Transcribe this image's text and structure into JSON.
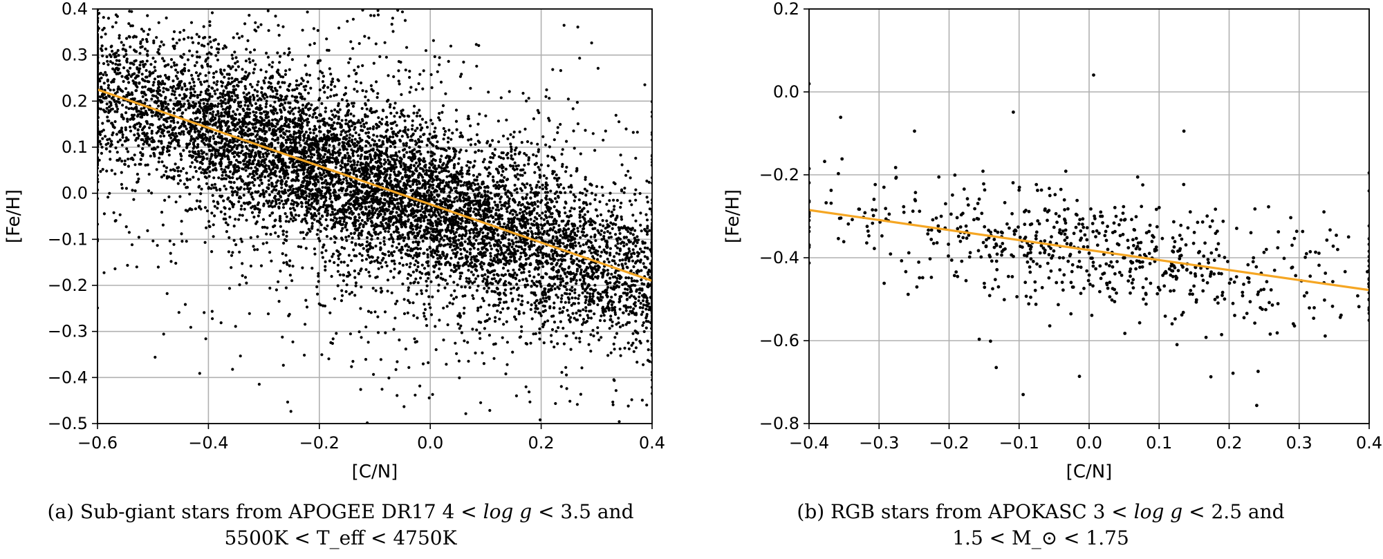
{
  "chart_data": [
    {
      "id": "a",
      "type": "scatter",
      "xlabel": "[C/N]",
      "ylabel": "[Fe/H]",
      "xlim": [
        -0.6,
        0.4
      ],
      "ylim": [
        -0.5,
        0.4
      ],
      "xticks": [
        -0.6,
        -0.4,
        -0.2,
        0.0,
        0.2,
        0.4
      ],
      "yticks": [
        -0.5,
        -0.4,
        -0.3,
        -0.2,
        -0.1,
        0.0,
        0.1,
        0.2,
        0.3,
        0.4
      ],
      "xtick_labels": [
        "−0.6",
        "−0.4",
        "−0.2",
        "0.0",
        "0.2",
        "0.4"
      ],
      "ytick_labels": [
        "−0.5",
        "−0.4",
        "−0.3",
        "−0.2",
        "−0.1",
        "0.0",
        "0.1",
        "0.2",
        "0.3",
        "0.4"
      ],
      "grid": true,
      "fit_line": {
        "x": [
          -0.6,
          0.4
        ],
        "y": [
          0.225,
          -0.19
        ],
        "color": "#f5a623"
      },
      "scatter": {
        "n_points": 9000,
        "color": "#000000",
        "trend_intercept": -0.026,
        "trend_slope": -0.415,
        "core_spread": 0.085,
        "halo_spread": 0.22,
        "halo_fraction": 0.18
      }
    },
    {
      "id": "b",
      "type": "scatter",
      "xlabel": "[C/N]",
      "ylabel": "[Fe/H]",
      "xlim": [
        -0.4,
        0.4
      ],
      "ylim": [
        -0.8,
        0.2
      ],
      "xticks": [
        -0.4,
        -0.3,
        -0.2,
        -0.1,
        0.0,
        0.1,
        0.2,
        0.3,
        0.4
      ],
      "yticks": [
        -0.8,
        -0.6,
        -0.4,
        -0.2,
        0.0,
        0.2
      ],
      "xtick_labels": [
        "−0.4",
        "−0.3",
        "−0.2",
        "−0.1",
        "0.0",
        "0.1",
        "0.2",
        "0.3",
        "0.4"
      ],
      "ytick_labels": [
        "−0.8",
        "−0.6",
        "−0.4",
        "−0.2",
        "0.0",
        "0.2"
      ],
      "grid": true,
      "fit_line": {
        "x": [
          -0.4,
          0.4
        ],
        "y": [
          -0.285,
          -0.478
        ],
        "color": "#f5a623"
      },
      "scatter": {
        "n_points": 700,
        "color": "#000000",
        "trend_intercept": -0.382,
        "trend_slope": -0.24,
        "core_spread": 0.07,
        "halo_spread": 0.15,
        "halo_fraction": 0.15
      }
    }
  ],
  "captions": {
    "a_line1_pre": "(a) Sub-giant stars from APOGEE DR17 4 < ",
    "a_line1_math": "log g",
    "a_line1_post": " < 3.5 and",
    "a_line2": "5500K < T_eff < 4750K",
    "b_line1_pre": "(b) RGB stars from APOKASC 3 < ",
    "b_line1_math": "log g",
    "b_line1_post": " < 2.5 and",
    "b_line2": "1.5 < M_⊙ < 1.75"
  }
}
